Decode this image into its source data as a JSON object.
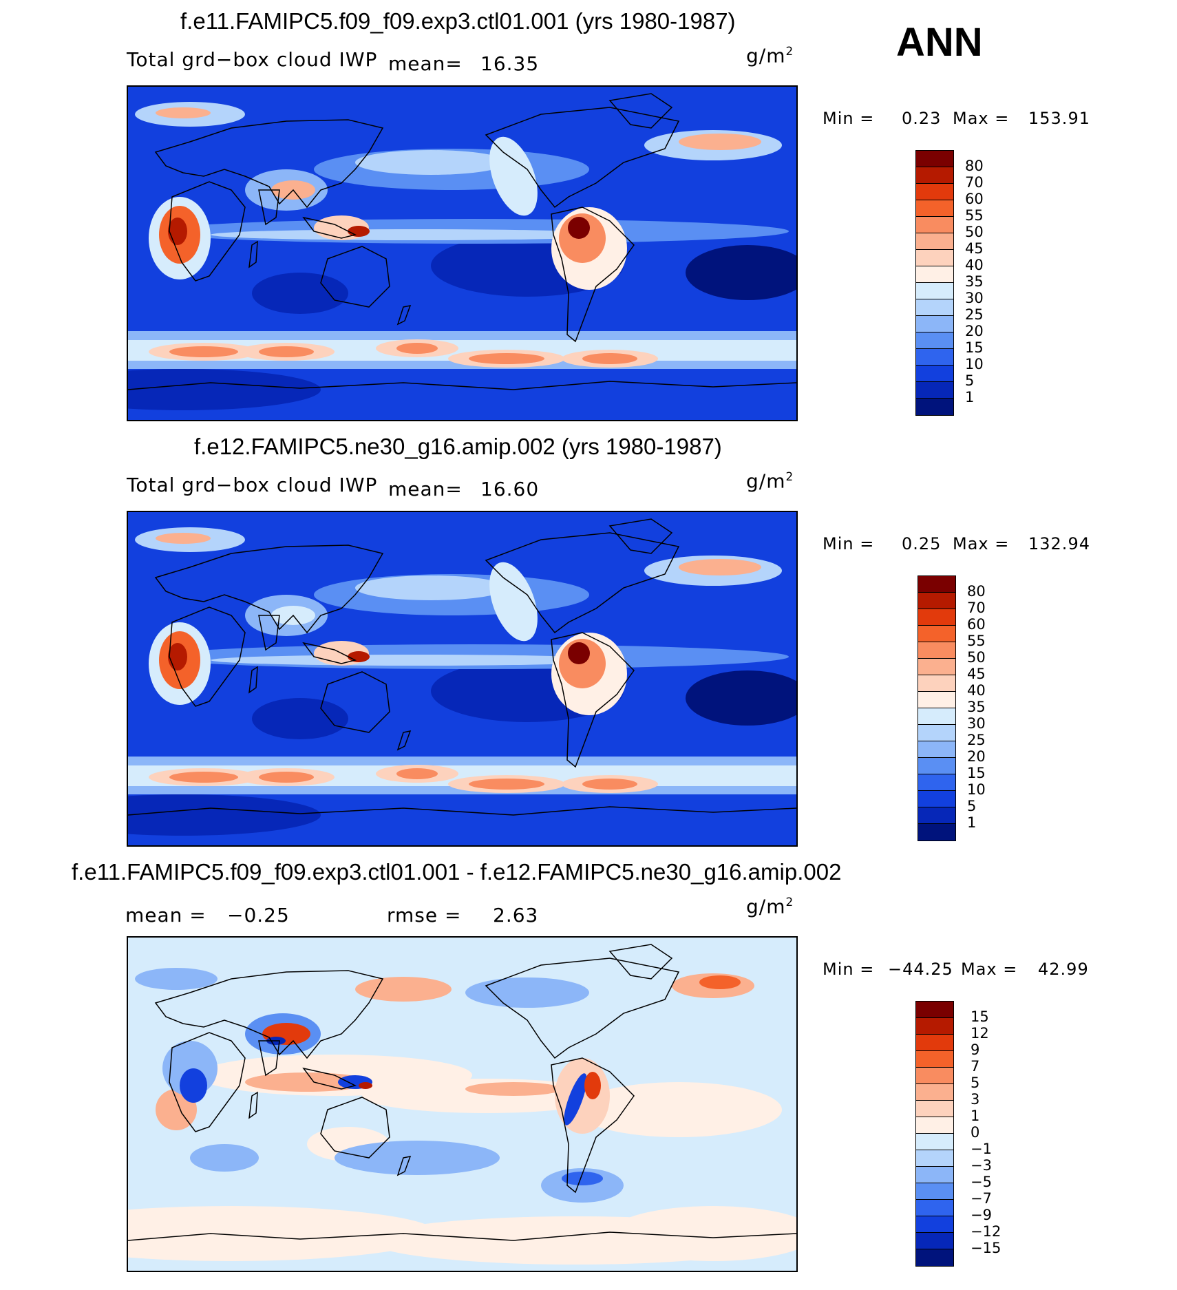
{
  "season": "ANN",
  "units_base": "g/m",
  "units_exp": "2",
  "panels": [
    {
      "title": "f.e11.FAMIPC5.f09_f09.exp3.ctl01.001 (yrs 1980-1987)",
      "variable": "Total grd−box cloud IWP",
      "mean_label": "mean=",
      "mean_value": "16.35",
      "min_label": "Min =",
      "min_value": "0.23",
      "max_label": "Max =",
      "max_value": "153.91",
      "colorbar": {
        "levels": [
          "80",
          "70",
          "60",
          "55",
          "50",
          "45",
          "40",
          "35",
          "30",
          "25",
          "20",
          "15",
          "10",
          "5",
          "1"
        ],
        "colors": [
          "#7a0000",
          "#b51a00",
          "#e23a0c",
          "#f4622a",
          "#f98c60",
          "#fbb08f",
          "#fdd2bd",
          "#fff0e6",
          "#d6ecfc",
          "#b4d4fb",
          "#8cb6f8",
          "#5a8ff3",
          "#2f64ee",
          "#1240de",
          "#0627b8",
          "#00137c"
        ]
      },
      "map_kind": "abs"
    },
    {
      "title": "f.e12.FAMIPC5.ne30_g16.amip.002 (yrs 1980-1987)",
      "variable": "Total grd−box cloud IWP",
      "mean_label": "mean=",
      "mean_value": "16.60",
      "min_label": "Min =",
      "min_value": "0.25",
      "max_label": "Max =",
      "max_value": "132.94",
      "colorbar": {
        "levels": [
          "80",
          "70",
          "60",
          "55",
          "50",
          "45",
          "40",
          "35",
          "30",
          "25",
          "20",
          "15",
          "10",
          "5",
          "1"
        ],
        "colors": [
          "#7a0000",
          "#b51a00",
          "#e23a0c",
          "#f4622a",
          "#f98c60",
          "#fbb08f",
          "#fdd2bd",
          "#fff0e6",
          "#d6ecfc",
          "#b4d4fb",
          "#8cb6f8",
          "#5a8ff3",
          "#2f64ee",
          "#1240de",
          "#0627b8",
          "#00137c"
        ]
      },
      "map_kind": "abs"
    },
    {
      "title": "f.e11.FAMIPC5.f09_f09.exp3.ctl01.001 - f.e12.FAMIPC5.ne30_g16.amip.002",
      "mean_label": "mean =",
      "mean_value": "−0.25",
      "rmse_label": "rmse =",
      "rmse_value": "2.63",
      "min_label": "Min =",
      "min_value": "−44.25",
      "max_label": "Max =",
      "max_value": "42.99",
      "colorbar": {
        "levels": [
          "15",
          "12",
          "9",
          "7",
          "5",
          "3",
          "1",
          "0",
          "−1",
          "−3",
          "−5",
          "−7",
          "−9",
          "−12",
          "−15"
        ],
        "colors": [
          "#7a0000",
          "#b51a00",
          "#e23a0c",
          "#f4622a",
          "#f98c60",
          "#fbb08f",
          "#fdd2bd",
          "#fff0e6",
          "#d6ecfc",
          "#b4d4fb",
          "#8cb6f8",
          "#5a8ff3",
          "#2f64ee",
          "#1240de",
          "#0627b8",
          "#00137c"
        ]
      },
      "map_kind": "diff"
    }
  ]
}
